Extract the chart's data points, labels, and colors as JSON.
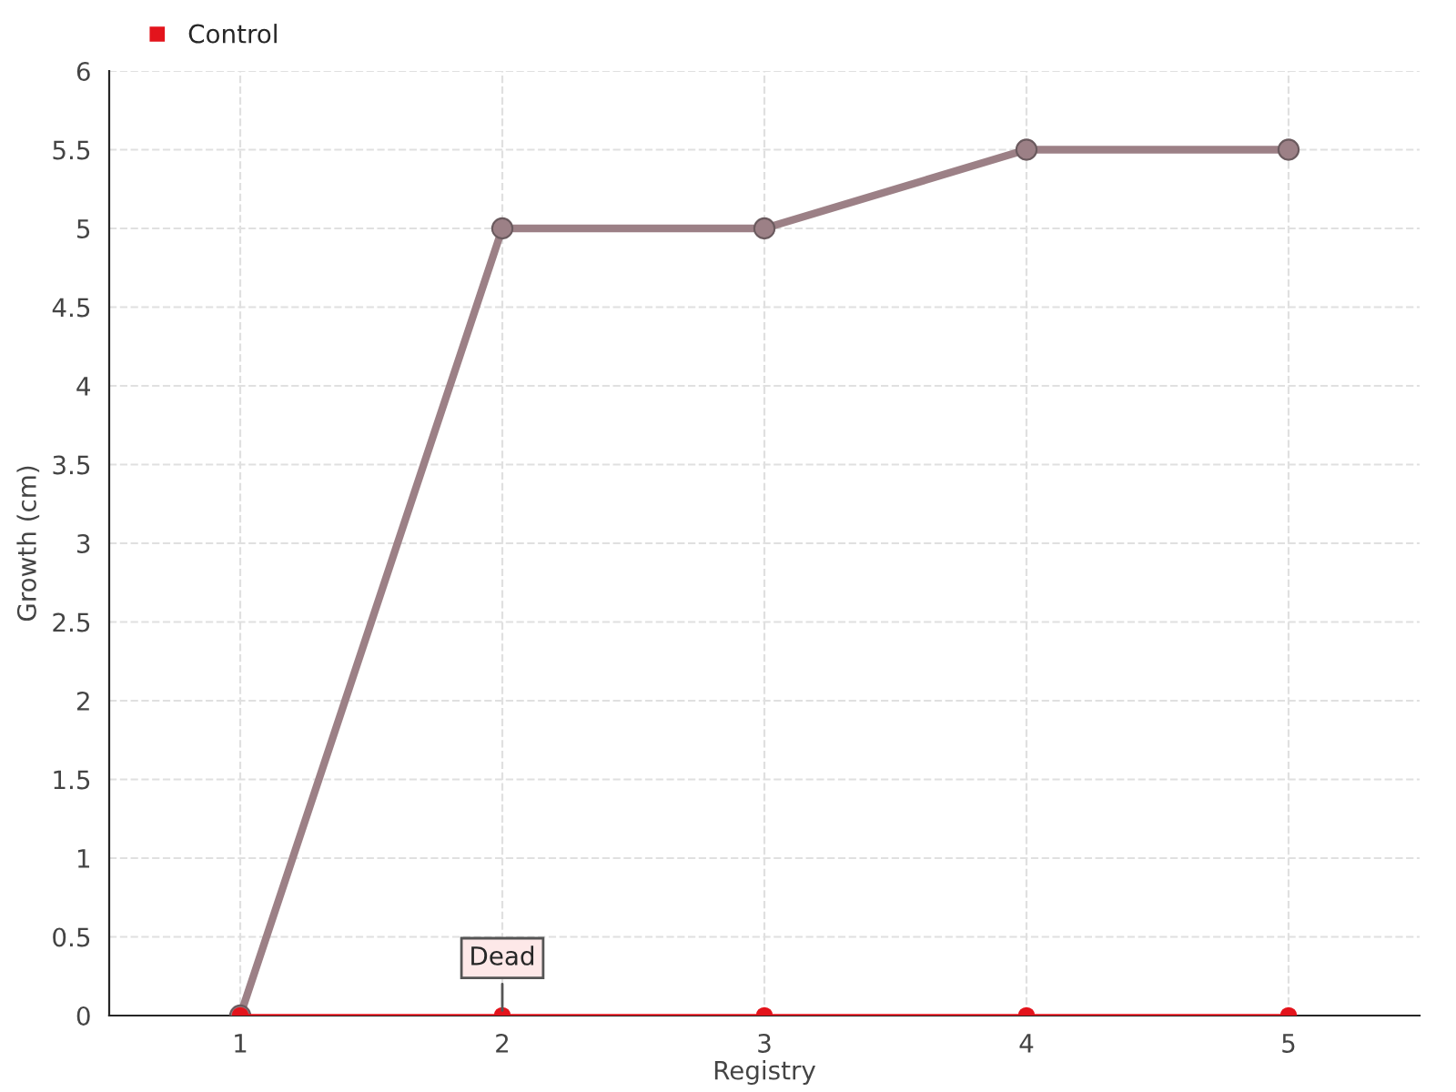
{
  "chart_data": {
    "type": "line",
    "xlabel": "Registry",
    "ylabel": "Growth (cm)",
    "categories": [
      "1",
      "2",
      "3",
      "4",
      "5"
    ],
    "series": [
      {
        "color": "#9c8086",
        "values": [
          0,
          5,
          5,
          5.5,
          5.5
        ]
      },
      {
        "name": "Control",
        "color": "#e3141c",
        "values": [
          0,
          0,
          0,
          0,
          0
        ]
      }
    ],
    "ylim": [
      0,
      6
    ],
    "yticks": [
      0,
      0.5,
      1,
      1.5,
      2,
      2.5,
      3,
      3.5,
      4,
      4.5,
      5,
      5.5,
      6
    ],
    "grid": true,
    "legend": "top left",
    "marker": "circle",
    "line_style": "solid",
    "annotations": [
      {
        "text": "Dead",
        "x": "2",
        "y": 0
      }
    ]
  }
}
